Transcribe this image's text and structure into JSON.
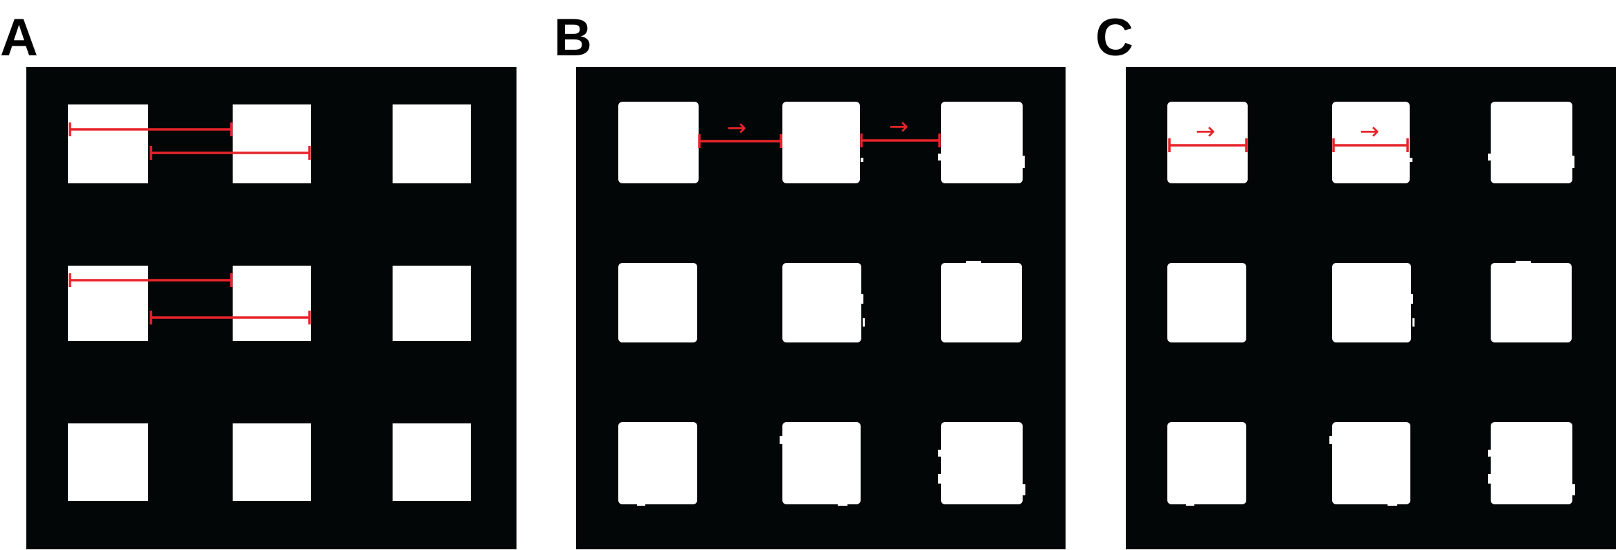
{
  "panels": [
    {
      "label": "A",
      "grid": {
        "rows": 3,
        "cols": 3
      },
      "edge_style": "clean"
    },
    {
      "label": "B",
      "grid": {
        "rows": 3,
        "cols": 3
      },
      "edge_style": "rough"
    },
    {
      "label": "C",
      "grid": {
        "rows": 3,
        "cols": 3
      },
      "edge_style": "rough"
    }
  ],
  "arrow_glyph": "→",
  "colors": {
    "background": "#030606",
    "square": "#ffffff",
    "annotation": "#e8242b",
    "label": "#000000"
  }
}
